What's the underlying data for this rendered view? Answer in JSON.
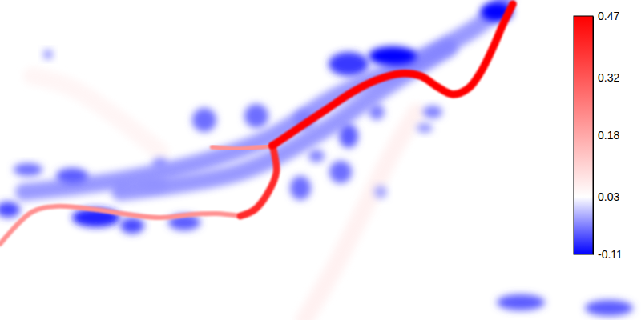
{
  "chart_data": {
    "type": "field",
    "xlim": [
      0,
      800
    ],
    "ylim": [
      0,
      400
    ],
    "tick_labels": false,
    "colorbar": {
      "range": [
        -0.11,
        0.47
      ],
      "center": 0.03,
      "ticks": [
        0.47,
        0.32,
        0.18,
        0.03,
        -0.11
      ]
    },
    "streams": [
      {
        "value": -0.04,
        "x": [
          30,
          150,
          260,
          340,
          420,
          520,
          600,
          630
        ],
        "y": [
          240,
          225,
          200,
          170,
          120,
          75,
          30,
          0
        ]
      },
      {
        "value": -0.04,
        "x": [
          150,
          300,
          400,
          480,
          560
        ],
        "y": [
          240,
          215,
          165,
          110,
          60
        ]
      },
      {
        "value": 0.06,
        "x": [
          520,
          490,
          460,
          420,
          380
        ],
        "y": [
          140,
          190,
          250,
          330,
          400
        ]
      },
      {
        "value": 0.05,
        "x": [
          40,
          90,
          150,
          200
        ],
        "y": [
          95,
          110,
          150,
          190
        ]
      },
      {
        "value": 0.22,
        "x": [
          0,
          40,
          70,
          120,
          160,
          200,
          240,
          270,
          300
        ],
        "y": [
          305,
          265,
          258,
          262,
          268,
          272,
          268,
          267,
          270
        ]
      },
      {
        "value": 0.22,
        "x": [
          265,
          300,
          340
        ],
        "y": [
          184,
          186,
          182
        ]
      },
      {
        "value": 0.4,
        "x": [
          300,
          318,
          335,
          345,
          343,
          340
        ],
        "y": [
          270,
          262,
          240,
          215,
          195,
          182
        ]
      },
      {
        "value": 0.47,
        "x": [
          340,
          355,
          380,
          410,
          440,
          470,
          500,
          525,
          545,
          565,
          585,
          600,
          615,
          628,
          640
        ],
        "y": [
          182,
          172,
          155,
          135,
          115,
          100,
          92,
          95,
          108,
          118,
          110,
          90,
          60,
          30,
          5
        ]
      }
    ],
    "blobs": [
      {
        "x": 435,
        "y": 80,
        "rx": 25,
        "ry": 15,
        "value": -0.08
      },
      {
        "x": 490,
        "y": 70,
        "rx": 30,
        "ry": 12,
        "value": -0.11
      },
      {
        "x": 620,
        "y": 15,
        "rx": 20,
        "ry": 12,
        "value": -0.11
      },
      {
        "x": 255,
        "y": 150,
        "rx": 15,
        "ry": 15,
        "value": -0.05
      },
      {
        "x": 320,
        "y": 145,
        "rx": 15,
        "ry": 15,
        "value": -0.05
      },
      {
        "x": 380,
        "y": 150,
        "rx": 12,
        "ry": 12,
        "value": -0.04
      },
      {
        "x": 435,
        "y": 170,
        "rx": 12,
        "ry": 15,
        "value": -0.06
      },
      {
        "x": 470,
        "y": 140,
        "rx": 10,
        "ry": 10,
        "value": -0.04
      },
      {
        "x": 425,
        "y": 215,
        "rx": 14,
        "ry": 14,
        "value": -0.05
      },
      {
        "x": 375,
        "y": 235,
        "rx": 13,
        "ry": 15,
        "value": -0.05
      },
      {
        "x": 395,
        "y": 195,
        "rx": 10,
        "ry": 8,
        "value": -0.04
      },
      {
        "x": 540,
        "y": 140,
        "rx": 12,
        "ry": 8,
        "value": -0.04
      },
      {
        "x": 200,
        "y": 205,
        "rx": 10,
        "ry": 8,
        "value": -0.03
      },
      {
        "x": 90,
        "y": 220,
        "rx": 20,
        "ry": 10,
        "value": -0.06
      },
      {
        "x": 35,
        "y": 212,
        "rx": 18,
        "ry": 8,
        "value": -0.05
      },
      {
        "x": 10,
        "y": 262,
        "rx": 15,
        "ry": 10,
        "value": -0.07
      },
      {
        "x": 120,
        "y": 272,
        "rx": 30,
        "ry": 12,
        "value": -0.09
      },
      {
        "x": 165,
        "y": 282,
        "rx": 15,
        "ry": 10,
        "value": -0.07
      },
      {
        "x": 230,
        "y": 278,
        "rx": 20,
        "ry": 10,
        "value": -0.06
      },
      {
        "x": 190,
        "y": 230,
        "rx": 20,
        "ry": 8,
        "value": -0.03
      },
      {
        "x": 650,
        "y": 378,
        "rx": 30,
        "ry": 10,
        "value": -0.06
      },
      {
        "x": 760,
        "y": 385,
        "rx": 30,
        "ry": 10,
        "value": -0.06
      },
      {
        "x": 60,
        "y": 68,
        "rx": 6,
        "ry": 6,
        "value": -0.03
      },
      {
        "x": 475,
        "y": 240,
        "rx": 8,
        "ry": 8,
        "value": -0.02
      },
      {
        "x": 530,
        "y": 160,
        "rx": 10,
        "ry": 6,
        "value": -0.03
      }
    ]
  }
}
